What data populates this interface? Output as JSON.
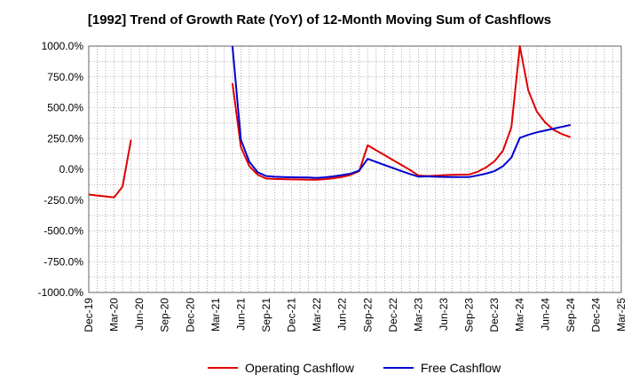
{
  "chart_data": {
    "type": "line",
    "title": "[1992]  Trend of Growth Rate (YoY) of 12-Month Moving Sum of Cashflows",
    "xlabel": "",
    "ylabel": "",
    "ylim": [
      -1000,
      1000
    ],
    "yticks": [
      "1000.0%",
      "750.0%",
      "500.0%",
      "250.0%",
      "0.0%",
      "-250.0%",
      "-500.0%",
      "-750.0%",
      "-1000.0%"
    ],
    "x_tick_labels": [
      "Dec-19",
      "Mar-20",
      "Jun-20",
      "Sep-20",
      "Dec-20",
      "Mar-21",
      "Jun-21",
      "Sep-21",
      "Dec-21",
      "Mar-22",
      "Jun-22",
      "Sep-22",
      "Dec-22",
      "Mar-23",
      "Jun-23",
      "Sep-23",
      "Dec-23",
      "Mar-24",
      "Jun-24",
      "Sep-24",
      "Dec-24",
      "Mar-25"
    ],
    "grid": true,
    "legend_position": "bottom",
    "series": [
      {
        "name": "Operating Cashflow",
        "color": "#e00000",
        "x": [
          "2019-12",
          "2020-01",
          "2020-02",
          "2020-03",
          "2020-04",
          "2020-05",
          "2021-05",
          "2021-06",
          "2021-07",
          "2021-08",
          "2021-09",
          "2021-10",
          "2021-11",
          "2021-12",
          "2022-01",
          "2022-02",
          "2022-03",
          "2022-04",
          "2022-05",
          "2022-06",
          "2022-07",
          "2022-08",
          "2022-09",
          "2022-10",
          "2022-11",
          "2022-12",
          "2023-01",
          "2023-02",
          "2023-03",
          "2023-04",
          "2023-05",
          "2023-06",
          "2023-07",
          "2023-08",
          "2023-09",
          "2023-10",
          "2023-11",
          "2023-12",
          "2024-01",
          "2024-02",
          "2024-03",
          "2024-04",
          "2024-05",
          "2024-06",
          "2024-07",
          "2024-08",
          "2024-09"
        ],
        "y": [
          -205,
          -213,
          -220,
          -228,
          -140,
          240,
          700,
          180,
          25,
          -45,
          -75,
          -78,
          -80,
          -82,
          -83,
          -85,
          -85,
          -80,
          -72,
          -62,
          -45,
          -15,
          195,
          155,
          115,
          75,
          35,
          -5,
          -50,
          -55,
          -52,
          -48,
          -45,
          -43,
          -42,
          -20,
          15,
          65,
          150,
          340,
          1030,
          640,
          470,
          380,
          320,
          285,
          260
        ]
      },
      {
        "name": "Free Cashflow",
        "color": "#0000d0",
        "x": [
          "2021-05",
          "2021-06",
          "2021-07",
          "2021-08",
          "2021-09",
          "2021-10",
          "2021-11",
          "2021-12",
          "2022-01",
          "2022-02",
          "2022-03",
          "2022-04",
          "2022-05",
          "2022-06",
          "2022-07",
          "2022-08",
          "2022-09",
          "2022-10",
          "2022-11",
          "2022-12",
          "2023-01",
          "2023-02",
          "2023-03",
          "2023-04",
          "2023-05",
          "2023-06",
          "2023-07",
          "2023-08",
          "2023-09",
          "2023-10",
          "2023-11",
          "2023-12",
          "2024-01",
          "2024-02",
          "2024-03",
          "2024-04",
          "2024-05",
          "2024-06",
          "2024-07",
          "2024-08",
          "2024-09"
        ],
        "y": [
          1000,
          240,
          60,
          -25,
          -55,
          -60,
          -63,
          -65,
          -66,
          -67,
          -70,
          -65,
          -57,
          -47,
          -35,
          -10,
          85,
          60,
          35,
          10,
          -15,
          -38,
          -60,
          -58,
          -60,
          -62,
          -63,
          -63,
          -63,
          -50,
          -35,
          -15,
          25,
          95,
          255,
          280,
          300,
          315,
          330,
          345,
          360
        ]
      }
    ]
  }
}
